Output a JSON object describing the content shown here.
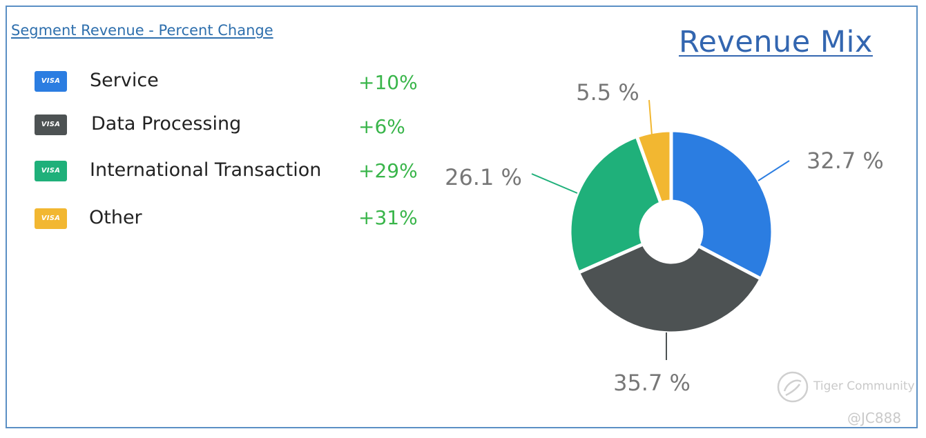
{
  "left_panel": {
    "title": "Segment Revenue - Percent Change",
    "icon_text": "VISA",
    "items": [
      {
        "label": "Service",
        "change": "+10%",
        "color": "#2b7de1"
      },
      {
        "label": "Data Processing",
        "change": "+6%",
        "color": "#4d5253"
      },
      {
        "label": "International Transaction",
        "change": "+29%",
        "color": "#1fb07a"
      },
      {
        "label": "Other",
        "change": "+31%",
        "color": "#f2b731"
      }
    ]
  },
  "chart_data": {
    "type": "pie",
    "variant": "donut",
    "title": "Revenue Mix",
    "categories": [
      "Service",
      "Data Processing",
      "International Transaction",
      "Other"
    ],
    "values": [
      32.7,
      35.7,
      26.1,
      5.5
    ],
    "labels": [
      "32.7 %",
      "35.7 %",
      "26.1 %",
      "5.5 %"
    ],
    "colors": [
      "#2b7de1",
      "#4d5253",
      "#1fb07a",
      "#f2b731"
    ],
    "label_color": "#777777"
  },
  "watermark": {
    "brand": "Tiger Community",
    "handle": "@JC888"
  }
}
